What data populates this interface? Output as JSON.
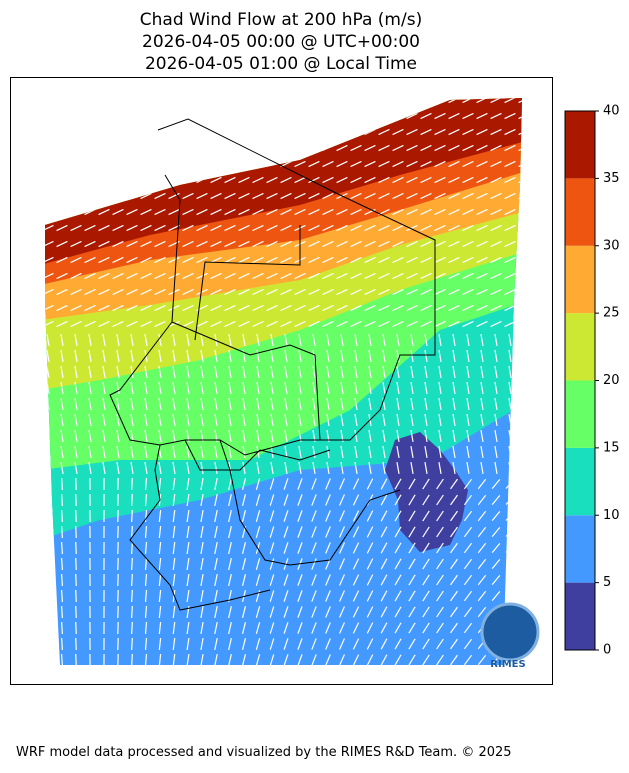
{
  "title": [
    "Chad Wind Flow at 200 hPa (m/s)",
    "2026-04-05 00:00 @ UTC+00:00",
    "2026-04-05 01:00 @ Local Time"
  ],
  "colorbar": {
    "lim": [
      0,
      40
    ],
    "ticks": [
      0,
      5,
      10,
      15,
      20,
      25,
      30,
      35,
      40
    ],
    "bounds": [
      0,
      5,
      10,
      15,
      20,
      25,
      30,
      35,
      40
    ],
    "colors": [
      "#3f3f9f",
      "#4499ff",
      "#1adfbf",
      "#66ff66",
      "#cde833",
      "#ffaa33",
      "#ee5511",
      "#aa1800"
    ]
  },
  "logo": "RIMES",
  "footer": "WRF model data processed and visualized by the RIMES R&D Team. © 2025"
}
